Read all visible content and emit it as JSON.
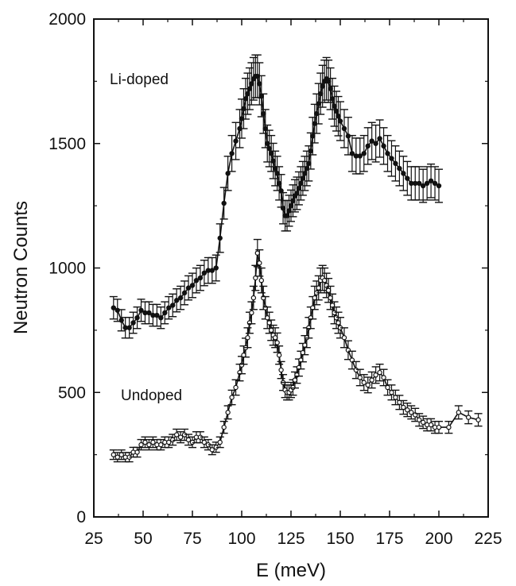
{
  "chart_data": {
    "type": "scatter",
    "xlabel": "E (meV)",
    "ylabel": "Neutron Counts",
    "xlim": [
      25,
      225
    ],
    "ylim": [
      0,
      2000
    ],
    "xticks": [
      "25",
      "50",
      "75",
      "100",
      "125",
      "150",
      "175",
      "200",
      "225"
    ],
    "yticks": [
      "0",
      "500",
      "1000",
      "1500",
      "2000"
    ],
    "annotations": [
      "Li-doped",
      "Undoped"
    ],
    "series": [
      {
        "marker": "filled",
        "label_ref": "annotations.0",
        "x": [
          35,
          37,
          39,
          41,
          43,
          45,
          47,
          49,
          51,
          53,
          55,
          57,
          59,
          61,
          63,
          65,
          67,
          69,
          71,
          73,
          75,
          77,
          79,
          81,
          83,
          85,
          87,
          89,
          91,
          93,
          95,
          97,
          99,
          100,
          101,
          102,
          103,
          104,
          105,
          106,
          107,
          108,
          109,
          110,
          111,
          112,
          113,
          114,
          115,
          116,
          117,
          118,
          119,
          120,
          121,
          122,
          123,
          124,
          125,
          126,
          127,
          128,
          129,
          130,
          131,
          132,
          133,
          134,
          135,
          136,
          137,
          138,
          139,
          140,
          141,
          142,
          143,
          144,
          145,
          146,
          147,
          148,
          149,
          150,
          152,
          154,
          156,
          158,
          160,
          162,
          164,
          166,
          168,
          170,
          172,
          174,
          176,
          178,
          180,
          182,
          184,
          186,
          188,
          190,
          192,
          194,
          196,
          198,
          200
        ],
        "y": [
          840,
          830,
          790,
          760,
          760,
          780,
          800,
          830,
          820,
          820,
          810,
          810,
          800,
          820,
          840,
          850,
          870,
          880,
          900,
          920,
          930,
          950,
          960,
          980,
          990,
          990,
          1000,
          1120,
          1260,
          1380,
          1460,
          1510,
          1560,
          1600,
          1640,
          1680,
          1700,
          1720,
          1740,
          1760,
          1770,
          1770,
          1740,
          1690,
          1620,
          1560,
          1500,
          1480,
          1460,
          1430,
          1400,
          1380,
          1340,
          1310,
          1240,
          1210,
          1210,
          1230,
          1250,
          1270,
          1290,
          1300,
          1320,
          1340,
          1360,
          1380,
          1400,
          1420,
          1470,
          1530,
          1580,
          1620,
          1660,
          1700,
          1730,
          1750,
          1760,
          1750,
          1720,
          1680,
          1650,
          1630,
          1610,
          1590,
          1560,
          1530,
          1460,
          1450,
          1450,
          1460,
          1490,
          1510,
          1500,
          1520,
          1490,
          1460,
          1440,
          1420,
          1400,
          1380,
          1360,
          1340,
          1340,
          1340,
          1330,
          1340,
          1350,
          1340,
          1330
        ]
      },
      {
        "marker": "open",
        "label_ref": "annotations.1",
        "x": [
          35,
          37,
          39,
          41,
          43,
          45,
          47,
          49,
          51,
          53,
          55,
          57,
          59,
          61,
          63,
          65,
          67,
          69,
          71,
          73,
          75,
          77,
          79,
          81,
          83,
          85,
          87,
          89,
          91,
          93,
          95,
          97,
          99,
          100,
          101,
          102,
          103,
          104,
          105,
          106,
          107,
          108,
          109,
          110,
          111,
          112,
          113,
          114,
          115,
          116,
          117,
          118,
          119,
          120,
          121,
          122,
          123,
          124,
          125,
          126,
          127,
          128,
          129,
          130,
          131,
          132,
          133,
          134,
          135,
          136,
          137,
          138,
          139,
          140,
          141,
          142,
          143,
          144,
          145,
          146,
          147,
          148,
          149,
          150,
          152,
          154,
          156,
          158,
          160,
          162,
          164,
          166,
          168,
          170,
          172,
          174,
          176,
          178,
          180,
          182,
          184,
          186,
          188,
          190,
          192,
          194,
          196,
          198,
          200,
          205,
          210,
          215,
          220
        ],
        "y": [
          250,
          240,
          250,
          240,
          240,
          260,
          260,
          290,
          300,
          290,
          300,
          290,
          290,
          300,
          300,
          310,
          330,
          320,
          330,
          310,
          300,
          320,
          320,
          300,
          290,
          270,
          280,
          300,
          360,
          420,
          480,
          520,
          580,
          610,
          650,
          680,
          720,
          780,
          820,
          880,
          960,
          1060,
          1020,
          950,
          880,
          840,
          800,
          780,
          750,
          730,
          720,
          700,
          650,
          590,
          540,
          510,
          500,
          500,
          510,
          520,
          550,
          570,
          600,
          630,
          660,
          690,
          720,
          760,
          800,
          840,
          880,
          900,
          920,
          950,
          960,
          950,
          930,
          910,
          880,
          850,
          820,
          800,
          780,
          760,
          720,
          670,
          630,
          590,
          560,
          540,
          530,
          550,
          570,
          580,
          560,
          520,
          500,
          480,
          460,
          440,
          430,
          420,
          410,
          390,
          380,
          370,
          370,
          360,
          360,
          360,
          420,
          400,
          390
        ]
      }
    ]
  }
}
